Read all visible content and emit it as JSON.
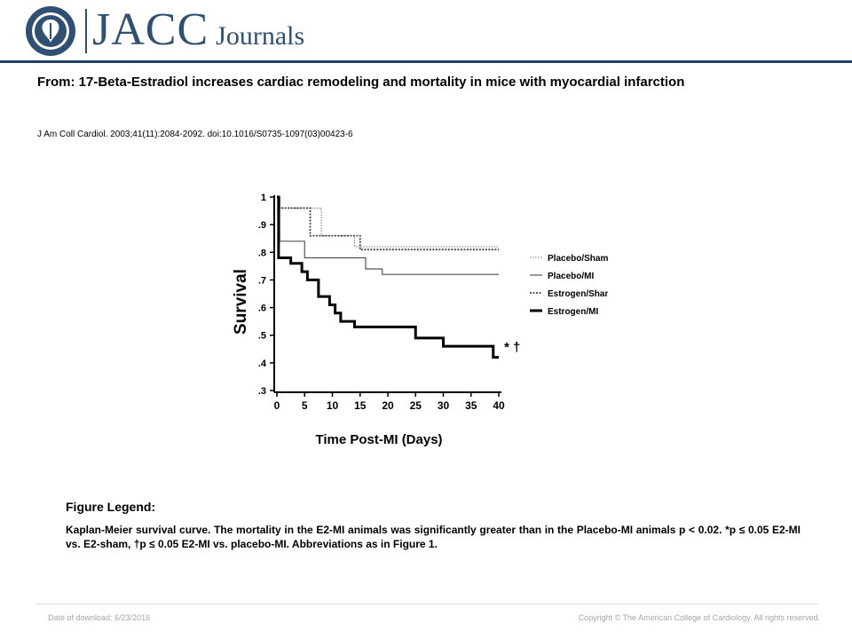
{
  "header": {
    "logo_jacc": "JACC",
    "logo_journals": "Journals",
    "seal_text": "AMERICAN COLLEGE OF CARDIOLOGY",
    "brand_color": "#2f5072",
    "rule_color": "#1f3f66"
  },
  "figure": {
    "title": "From: 17-Beta-Estradiol increases cardiac remodeling and mortality in mice with myocardial infarction",
    "citation": "J Am Coll Cardiol. 2003;41(11):2084-2092. doi:10.1016/S0735-1097(03)00423-6"
  },
  "chart_data": {
    "type": "line",
    "step": true,
    "xlabel": "Time Post-MI (Days)",
    "ylabel": "Survival",
    "xlim": [
      0,
      40
    ],
    "ylim": [
      0.3,
      1.0
    ],
    "x_ticks": [
      0,
      5,
      10,
      15,
      20,
      25,
      30,
      35,
      40
    ],
    "y_ticks": [
      1,
      0.9,
      0.8,
      0.7,
      0.6,
      0.5,
      0.4,
      0.3
    ],
    "y_tick_labels": [
      "1",
      ".9",
      ".8",
      ".7",
      ".6",
      ".5",
      ".4",
      ".3"
    ],
    "legend_position": "right",
    "annotation": "* †",
    "series": [
      {
        "name": "Placebo/Sham",
        "style": "dotted-thin",
        "x": [
          0,
          8,
          14,
          40
        ],
        "y": [
          0.96,
          0.86,
          0.82,
          0.82
        ]
      },
      {
        "name": "Placebo/MI",
        "style": "solid-thin",
        "x": [
          0,
          0.5,
          5,
          16,
          19,
          40
        ],
        "y": [
          1.0,
          0.84,
          0.78,
          0.74,
          0.72,
          0.72
        ]
      },
      {
        "name": "Estrogen/Sham",
        "style": "dotted-thick",
        "x": [
          0,
          0.5,
          6,
          15,
          40
        ],
        "y": [
          1.0,
          0.96,
          0.86,
          0.81,
          0.81
        ]
      },
      {
        "name": "Estrogen/MI",
        "style": "solid-thick",
        "x": [
          0,
          0.3,
          2.5,
          4.5,
          5.5,
          7.5,
          9.5,
          10.5,
          11.5,
          14,
          25,
          30,
          39,
          40
        ],
        "y": [
          1.0,
          0.78,
          0.76,
          0.73,
          0.7,
          0.64,
          0.61,
          0.58,
          0.55,
          0.53,
          0.49,
          0.46,
          0.42,
          0.42
        ]
      }
    ]
  },
  "legend": {
    "heading": "Figure Legend:",
    "text": "Kaplan-Meier survival curve. The mortality in the E2-MI animals was significantly greater than in the Placebo-MI animals p < 0.02. *p ≤ 0.05 E2-MI vs. E2-sham, †p ≤ 0.05 E2-MI vs. placebo-MI. Abbreviations as in Figure 1."
  },
  "footer": {
    "date": "Date of download:  6/23/2016",
    "copyright": "Copyright © The American College of Cardiology. All rights reserved."
  }
}
